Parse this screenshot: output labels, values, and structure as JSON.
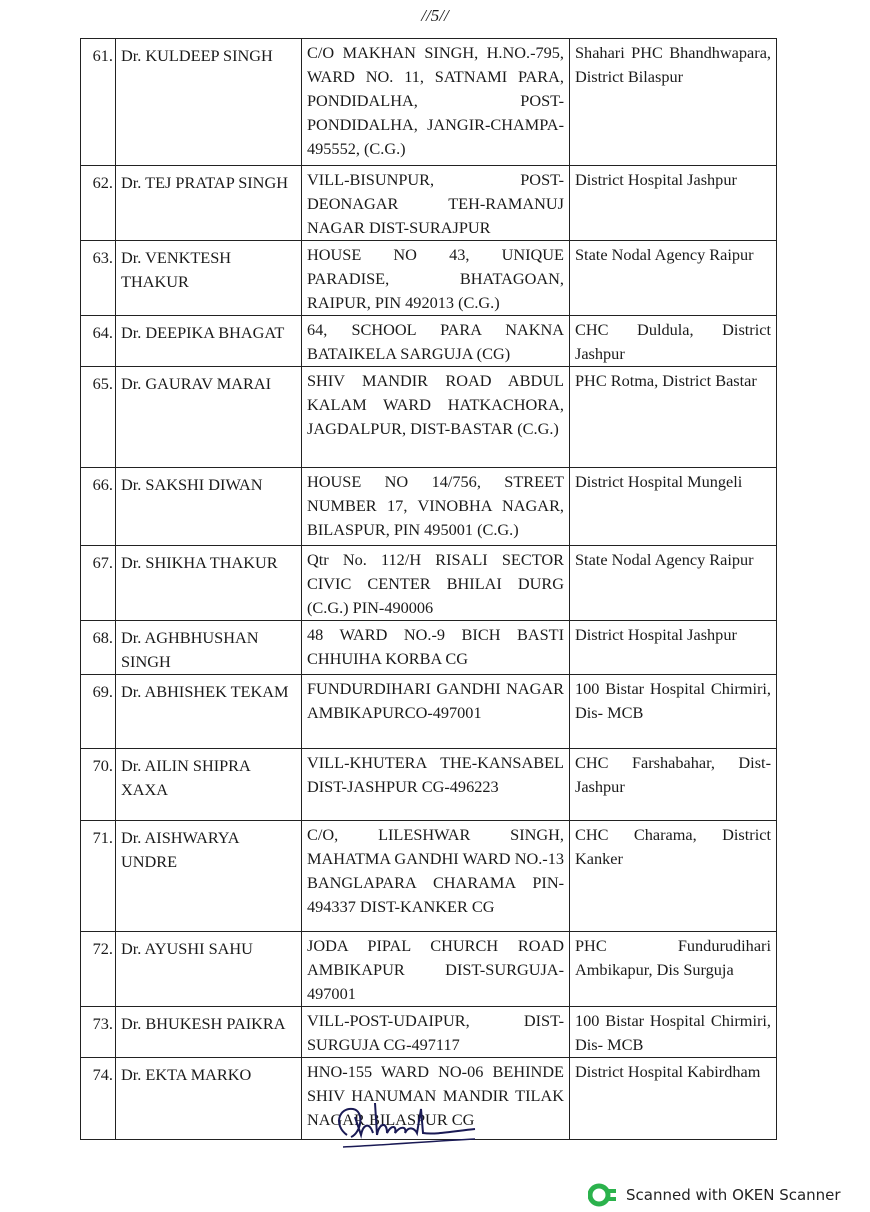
{
  "page_number": "//5//",
  "rows": [
    {
      "no": "61.",
      "name": "Dr. KULDEEP SINGH",
      "address": "C/O MAKHAN SINGH, H.NO.-795, WARD NO. 11, SATNAMI PARA, PONDIDALHA, POST-PONDIDALHA, JANGIR-CHAMPA-495552, (C.G.)",
      "posting": "Shahari PHC Bhandhwapara, District Bilaspur"
    },
    {
      "no": "62.",
      "name": "Dr. TEJ PRATAP SINGH",
      "address": "VILL-BISUNPUR, POST-DEONAGAR TEH-RAMANUJ NAGAR DIST-SURAJPUR",
      "posting": "District Hospital Jashpur"
    },
    {
      "no": "63.",
      "name": "Dr. VENKTESH THAKUR",
      "address": "HOUSE NO 43, UNIQUE PARADISE, BHATAGOAN, RAIPUR, PIN 492013 (C.G.)",
      "posting": "State Nodal Agency Raipur"
    },
    {
      "no": "64.",
      "name": "Dr. DEEPIKA BHAGAT",
      "address": "64, SCHOOL PARA NAKNA BATAIKELA SARGUJA (CG)",
      "posting": "CHC Duldula, District Jashpur"
    },
    {
      "no": "65.",
      "name": "Dr. GAURAV MARAI",
      "address": "SHIV MANDIR ROAD ABDUL KALAM WARD HATKACHORA, JAGDALPUR, DIST-BASTAR (C.G.)",
      "posting": "PHC Rotma, District Bastar"
    },
    {
      "no": "66.",
      "name": "Dr. SAKSHI DIWAN",
      "address": "HOUSE NO 14/756, STREET NUMBER 17, VINOBHA NAGAR, BILASPUR, PIN 495001 (C.G.)",
      "posting": "District Hospital Mungeli"
    },
    {
      "no": "67.",
      "name": "Dr. SHIKHA THAKUR",
      "address": "Qtr No. 112/H RISALI SECTOR CIVIC CENTER BHILAI DURG (C.G.) PIN-490006",
      "posting": "State Nodal Agency Raipur"
    },
    {
      "no": "68.",
      "name": "Dr. AGHBHUSHAN SINGH",
      "address": "48 WARD NO.-9 BICH BASTI CHHUIHA KORBA CG",
      "posting": "District Hospital Jashpur"
    },
    {
      "no": "69.",
      "name": "Dr. ABHISHEK TEKAM",
      "address": "FUNDURDIHARI GANDHI NAGAR AMBIKAPURCO-497001",
      "posting": "100 Bistar Hospital Chirmiri, Dis- MCB"
    },
    {
      "no": "70.",
      "name": "Dr. AILIN SHIPRA XAXA",
      "address": "VILL-KHUTERA THE-KANSABEL DIST-JASHPUR CG-496223",
      "posting": "CHC Farshabahar, Dist-Jashpur"
    },
    {
      "no": "71.",
      "name": "Dr. AISHWARYA UNDRE",
      "address": "C/O, LILESHWAR SINGH, MAHATMA GANDHI WARD NO.-13 BANGLAPARA CHARAMA PIN-494337 DIST-KANKER CG",
      "posting": "CHC Charama, District Kanker"
    },
    {
      "no": "72.",
      "name": "Dr. AYUSHI SAHU",
      "address": "JODA PIPAL CHURCH ROAD AMBIKAPUR DIST-SURGUJA-497001",
      "posting": "PHC Fundurudihari Ambikapur, Dis Surguja"
    },
    {
      "no": "73.",
      "name": "Dr. BHUKESH PAIKRA",
      "address": "VILL-POST-UDAIPUR, DIST-SURGUJA CG-497117",
      "posting": "100 Bistar Hospital Chirmiri, Dis- MCB"
    },
    {
      "no": "74.",
      "name": "Dr. EKTA MARKO",
      "address": "HNO-155 WARD NO-06 BEHINDE SHIV HANUMAN MANDIR TILAK NAGAR BILASPUR CG",
      "posting": "District Hospital Kabirdham"
    }
  ],
  "footer": {
    "label": "Scanned with OKEN Scanner",
    "icon": "oken-scanner-logo-icon",
    "color": "#2bb24c"
  }
}
